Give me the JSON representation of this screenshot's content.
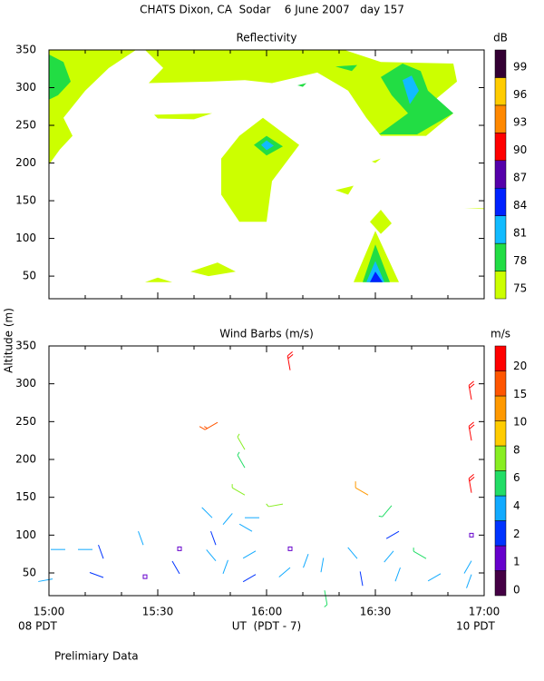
{
  "title": "CHATS Dixon, CA  Sodar    6 June 2007   day 157",
  "ylabel": "Altitude (m)",
  "xlabel": "UT  (PDT - 7)",
  "x_start_label": "08 PDT",
  "x_end_label": "10 PDT",
  "footnote": "Prelimiary Data",
  "chart_data": [
    {
      "type": "contour",
      "title": "Reflectivity",
      "colorbar_unit": "dB",
      "colorbar": {
        "levels": [
          75,
          78,
          81,
          84,
          87,
          90,
          93,
          96,
          99
        ],
        "colors": [
          "#ccff00",
          "#22dd44",
          "#11bbff",
          "#0022ff",
          "#5500aa",
          "#ff0000",
          "#ff8800",
          "#ffcc00",
          "#330033"
        ]
      },
      "xlim": [
        900,
        1020
      ],
      "ylim": [
        20,
        350
      ],
      "xticks": [
        900,
        930,
        960,
        990,
        1020
      ],
      "xticklabels": false,
      "xminorticks": [
        910,
        920,
        940,
        950,
        970,
        980,
        1000,
        1010
      ],
      "yticks": [
        50,
        100,
        150,
        200,
        250,
        300,
        350
      ],
      "regions": [
        {
          "level": 75,
          "x": [
            900,
            924,
            916.5,
            910,
            904,
            906.5,
            903,
            900
          ],
          "y": [
            350,
            350,
            326,
            296,
            260,
            236,
            218,
            198
          ]
        },
        {
          "level": 75,
          "x": [
            926.5,
            981.5,
            991.5,
            1011.5,
            1012.5,
            1006.5,
            1011.5,
            1004,
            991.5,
            987.5,
            982.5,
            974,
            961.5,
            954,
            944,
            927.5,
            931.5
          ],
          "y": [
            350,
            350,
            334,
            332,
            308,
            284,
            266,
            236,
            236,
            260,
            296,
            320,
            306,
            310,
            308,
            306,
            326
          ]
        },
        {
          "level": 75,
          "x": [
            947.5,
            952.5,
            959,
            969,
            961.5,
            960,
            952.5,
            947.5
          ],
          "y": [
            206,
            236,
            260,
            224,
            176,
            122,
            122,
            158
          ]
        },
        {
          "level": 75,
          "x": [
            929,
            945,
            940,
            930
          ],
          "y": [
            264,
            266,
            258,
            259
          ]
        },
        {
          "level": 75,
          "x": [
            984,
            990,
            996.5
          ],
          "y": [
            42,
            110,
            42
          ]
        },
        {
          "level": 75,
          "x": [
            988.5,
            991.5,
            994.5,
            991.5
          ],
          "y": [
            122,
            138,
            120,
            106
          ]
        },
        {
          "level": 75,
          "x": [
            926.5,
            930,
            934
          ],
          "y": [
            42,
            48,
            42
          ]
        },
        {
          "level": 75,
          "x": [
            939,
            946.5,
            951.5,
            944
          ],
          "y": [
            56,
            68,
            56,
            50
          ]
        },
        {
          "level": 75,
          "x": [
            979,
            984,
            982.5
          ],
          "y": [
            164,
            170,
            158
          ]
        },
        {
          "level": 75,
          "x": [
            989,
            991.5,
            990
          ],
          "y": [
            202,
            206,
            200
          ]
        },
        {
          "level": 75,
          "x": [
            1014.5,
            1020,
            1020
          ],
          "y": [
            140,
            140,
            139
          ]
        },
        {
          "level": 78,
          "x": [
            986.5,
            990,
            994
          ],
          "y": [
            42,
            92,
            42
          ]
        },
        {
          "level": 78,
          "x": [
            956.5,
            960,
            964.5,
            960
          ],
          "y": [
            224,
            236,
            222,
            210
          ]
        },
        {
          "level": 78,
          "x": [
            991.5,
            997.5,
            1002.5,
            1004.5,
            1011.5,
            1001.5,
            991,
            999,
            994.5
          ],
          "y": [
            314,
            332,
            322,
            296,
            266,
            238,
            238,
            266,
            290
          ]
        },
        {
          "level": 78,
          "x": [
            900,
            904,
            906,
            902.5,
            900
          ],
          "y": [
            344,
            334,
            308,
            290,
            284
          ]
        },
        {
          "level": 78,
          "x": [
            979,
            985,
            983.5
          ],
          "y": [
            328,
            330,
            322
          ]
        },
        {
          "level": 78,
          "x": [
            968.5,
            971,
            970
          ],
          "y": [
            303,
            306,
            301
          ]
        },
        {
          "level": 81,
          "x": [
            987.5,
            990,
            992.5
          ],
          "y": [
            42,
            70,
            42
          ]
        },
        {
          "level": 81,
          "x": [
            958.5,
            960,
            962,
            960
          ],
          "y": [
            224,
            230,
            223,
            217
          ]
        },
        {
          "level": 81,
          "x": [
            997.5,
            1000,
            1002,
            999.5
          ],
          "y": [
            310,
            316,
            296,
            278
          ]
        },
        {
          "level": 84,
          "x": [
            988.5,
            990,
            992
          ],
          "y": [
            42,
            56,
            42
          ]
        }
      ]
    },
    {
      "type": "barbs",
      "title": "Wind Barbs (m/s)",
      "colorbar_unit": "m/s",
      "colorbar": {
        "levels": [
          0,
          1,
          2,
          4,
          6,
          8,
          10,
          15,
          20
        ],
        "colors": [
          "#440044",
          "#6600cc",
          "#0033ff",
          "#11aaff",
          "#22dd66",
          "#88ee22",
          "#ffcc00",
          "#ff9900",
          "#ff5500",
          "#ff0000"
        ]
      },
      "xlim": [
        900,
        1020
      ],
      "ylim": [
        20,
        350
      ],
      "xticks": [
        {
          "value": 900,
          "label": "15:00"
        },
        {
          "value": 930,
          "label": "15:30"
        },
        {
          "value": 960,
          "label": "16:00"
        },
        {
          "value": 990,
          "label": "16:30"
        },
        {
          "value": 1020,
          "label": "17:00"
        }
      ],
      "xticklabels": true,
      "xminorticks": [
        910,
        920,
        940,
        950,
        970,
        980,
        1000,
        1010
      ],
      "yticks": [
        50,
        100,
        150,
        200,
        250,
        300,
        350
      ],
      "x": [
        901,
        904.5,
        908,
        915,
        915,
        926,
        926.5,
        936,
        936,
        945,
        946,
        946,
        948,
        948,
        956,
        957,
        957,
        958,
        966.5,
        966.5,
        971.5,
        975,
        976,
        985,
        986.5,
        995,
        995.5,
        996.5,
        1004,
        1008,
        1016.5,
        1016.5,
        1016.5,
        946.5,
        954,
        954,
        954,
        964.5,
        988,
        994.5,
        966.5,
        1016.5,
        1016.5,
        1016.5
      ],
      "y": [
        42,
        81,
        81,
        69,
        44,
        87,
        45,
        82,
        49,
        123,
        87,
        66,
        49,
        114,
        105,
        79,
        48,
        123,
        82,
        57,
        75,
        51,
        27,
        69,
        33,
        79,
        39,
        105,
        69,
        49,
        100,
        66,
        48,
        249,
        213,
        189,
        153,
        141,
        153,
        139,
        318,
        279,
        225,
        156
      ],
      "speed": [
        3,
        3,
        3,
        1.5,
        1.5,
        3,
        0,
        0,
        1.5,
        3,
        1.5,
        3,
        3,
        3,
        3,
        3,
        1.5,
        3,
        0,
        3,
        3,
        3,
        5,
        3,
        1.5,
        3,
        3,
        1.5,
        5,
        3,
        0,
        3,
        3,
        16,
        7,
        5,
        7,
        7,
        13,
        5,
        21,
        21,
        21,
        21
      ],
      "direction": [
        260,
        270,
        90,
        340,
        290,
        340,
        0,
        0,
        330,
        315,
        340,
        320,
        20,
        40,
        300,
        240,
        240,
        270,
        0,
        230,
        200,
        10,
        170,
        320,
        350,
        220,
        20,
        240,
        300,
        240,
        0,
        210,
        200,
        240,
        330,
        330,
        300,
        260,
        300,
        220,
        350,
        350,
        350,
        350
      ]
    }
  ]
}
